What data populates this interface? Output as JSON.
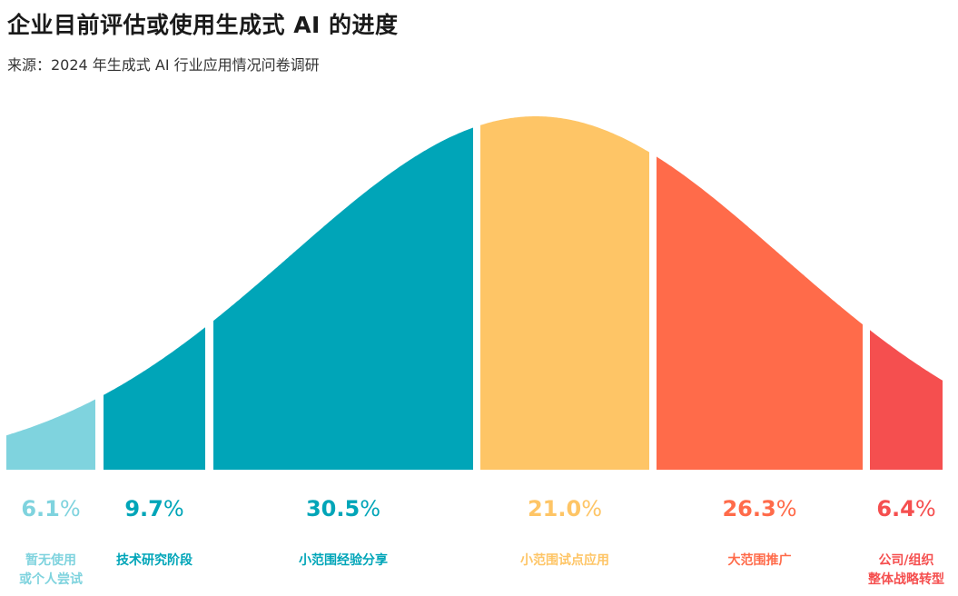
{
  "title": "企业目前评估或使用生成式 AI 的进度",
  "subtitle": "来源：2024 年生成式 AI 行业应用情况问卷调研",
  "chart_data": {
    "type": "area",
    "title": "企业目前评估或使用生成式 AI 的进度",
    "series": [
      {
        "name": "暂无使用或个人尝试",
        "label_lines": [
          "暂无使用",
          "或个人尝试"
        ],
        "value": 6.1,
        "value_text": "6.1",
        "unit": "%",
        "color": "#7fd3de"
      },
      {
        "name": "技术研究阶段",
        "label_lines": [
          "技术研究阶段"
        ],
        "value": 9.7,
        "value_text": "9.7",
        "unit": "%",
        "color": "#00a5b8"
      },
      {
        "name": "小范围经验分享",
        "label_lines": [
          "小范围经验分享"
        ],
        "value": 30.5,
        "value_text": "30.5",
        "unit": "%",
        "color": "#00a5b8"
      },
      {
        "name": "小范围试点应用",
        "label_lines": [
          "小范围试点应用"
        ],
        "value": 21.0,
        "value_text": "21.0",
        "unit": "%",
        "color": "#fec566"
      },
      {
        "name": "大范围推广",
        "label_lines": [
          "大范围推广"
        ],
        "value": 26.3,
        "value_text": "26.3",
        "unit": "%",
        "color": "#ff6b4a"
      },
      {
        "name": "公司/组织整体战略转型",
        "label_lines": [
          "公司/组织",
          "整体战略转型"
        ],
        "value": 6.4,
        "value_text": "6.4",
        "unit": "%",
        "color": "#f54f4f"
      }
    ],
    "grid": false,
    "legend": "none"
  }
}
